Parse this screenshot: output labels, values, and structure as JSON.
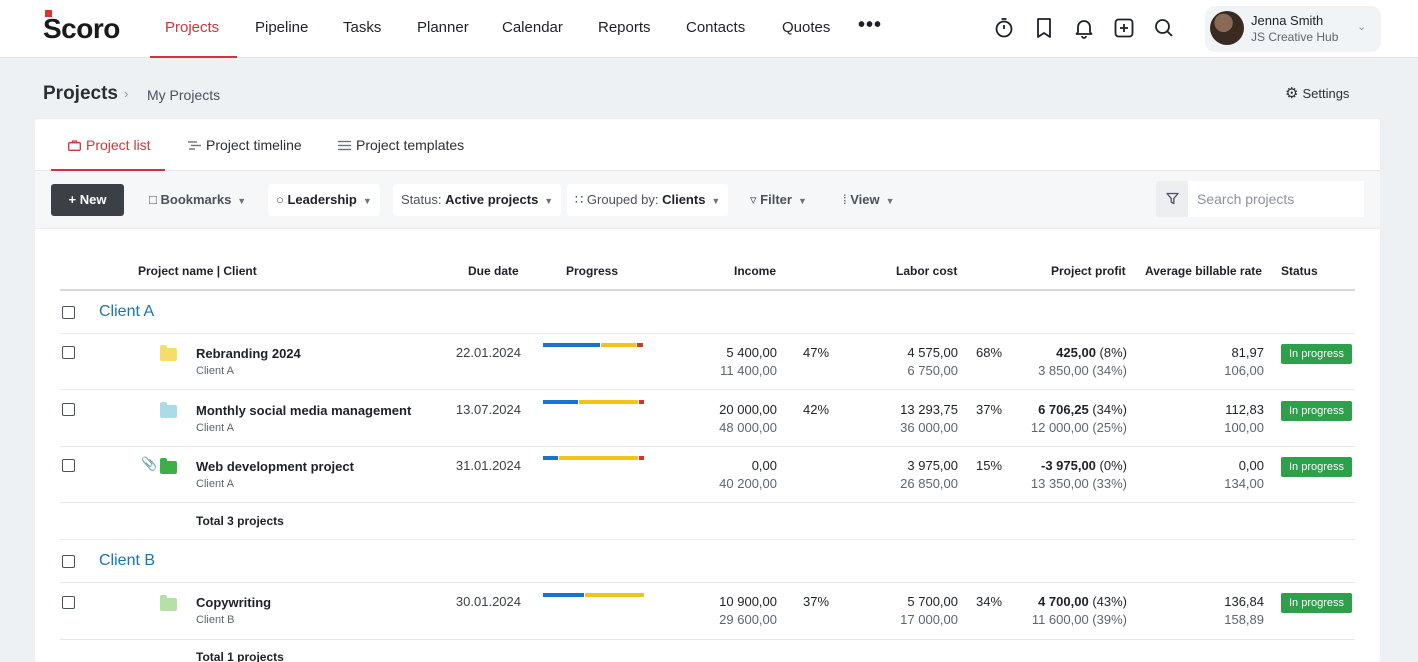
{
  "app": {
    "logo": "Scoro",
    "nav": [
      "Projects",
      "Pipeline",
      "Tasks",
      "Planner",
      "Calendar",
      "Reports",
      "Contacts",
      "Quotes"
    ],
    "nav_more": "•••",
    "user": {
      "name": "Jenna Smith",
      "company": "JS Creative Hub"
    },
    "icons": [
      "timer-icon",
      "bookmark-icon",
      "bell-icon",
      "plus-square-icon",
      "search-icon"
    ]
  },
  "page": {
    "title": "Projects",
    "breadcrumb_current": "My Projects",
    "settings_label": "Settings"
  },
  "tabs": [
    "Project list",
    "Project timeline",
    "Project templates"
  ],
  "toolbar": {
    "new_label": "+ New",
    "bookmarks_label": "Bookmarks",
    "leadership_label": "Leadership",
    "status_prefix": "Status:",
    "status_value": "Active projects",
    "grouped_prefix": "Grouped by:",
    "grouped_value": "Clients",
    "filter_label": "Filter",
    "view_label": "View",
    "search_placeholder": "Search projects"
  },
  "columns": [
    "Project name | Client",
    "Due date",
    "Progress",
    "Income",
    "Labor cost",
    "Project profit",
    "Average billable rate",
    "Status"
  ],
  "groups": [
    {
      "name": "Client A",
      "total": "Total 3 projects",
      "rows": [
        {
          "name": "Rebranding 2024",
          "client": "Client A",
          "due": "22.01.2024",
          "folder_color": "#f6dc6b",
          "progress": [
            0.57,
            0.35,
            0.06
          ],
          "income": "5 400,00",
          "income_planned": "11 400,00",
          "income_pct": "47%",
          "labor": "4 575,00",
          "labor_planned": "6 750,00",
          "labor_pct": "68%",
          "profit": "425,00",
          "profit_pct": "(8%)",
          "profit_planned": "3 850,00 (34%)",
          "rate": "81,97",
          "rate_planned": "106,00",
          "status": "In progress"
        },
        {
          "name": "Monthly social media management",
          "client": "Client A",
          "due": "13.07.2024",
          "folder_color": "#a9dbe9",
          "progress": [
            0.35,
            0.59,
            0.05
          ],
          "income": "20 000,00",
          "income_planned": "48 000,00",
          "income_pct": "42%",
          "labor": "13 293,75",
          "labor_planned": "36 000,00",
          "labor_pct": "37%",
          "profit": "6 706,25",
          "profit_pct": "(34%)",
          "profit_planned": "12 000,00 (25%)",
          "rate": "112,83",
          "rate_planned": "100,00",
          "status": "In progress"
        },
        {
          "name": "Web development project",
          "client": "Client A",
          "due": "31.01.2024",
          "folder_color": "#3fae49",
          "progress": [
            0.15,
            0.79,
            0.05
          ],
          "income": "0,00",
          "income_planned": "40 200,00",
          "income_pct": "",
          "labor": "3 975,00",
          "labor_planned": "26 850,00",
          "labor_pct": "15%",
          "profit": "-3 975,00",
          "profit_pct": "(0%)",
          "profit_planned": "13 350,00 (33%)",
          "rate": "0,00",
          "rate_planned": "134,00",
          "status": "In progress",
          "attachment": true
        }
      ]
    },
    {
      "name": "Client B",
      "total": "Total 1 projects",
      "rows": [
        {
          "name": "Copywriting",
          "client": "Client B",
          "due": "30.01.2024",
          "folder_color": "#b5e0a8",
          "progress": [
            0.41,
            0.59,
            0.0
          ],
          "income": "10 900,00",
          "income_planned": "29 600,00",
          "income_pct": "37%",
          "labor": "5 700,00",
          "labor_planned": "17 000,00",
          "labor_pct": "34%",
          "profit": "4 700,00",
          "profit_pct": "(43%)",
          "profit_planned": "11 600,00 (39%)",
          "rate": "136,84",
          "rate_planned": "158,89",
          "status": "In progress"
        }
      ]
    }
  ],
  "colors": {
    "accent": "#d0343a",
    "link": "#1a73b8",
    "status_green": "#2e9f4b",
    "bar_blue": "#1a73c8",
    "bar_yellow": "#f2c318",
    "bar_red": "#d9342b"
  }
}
